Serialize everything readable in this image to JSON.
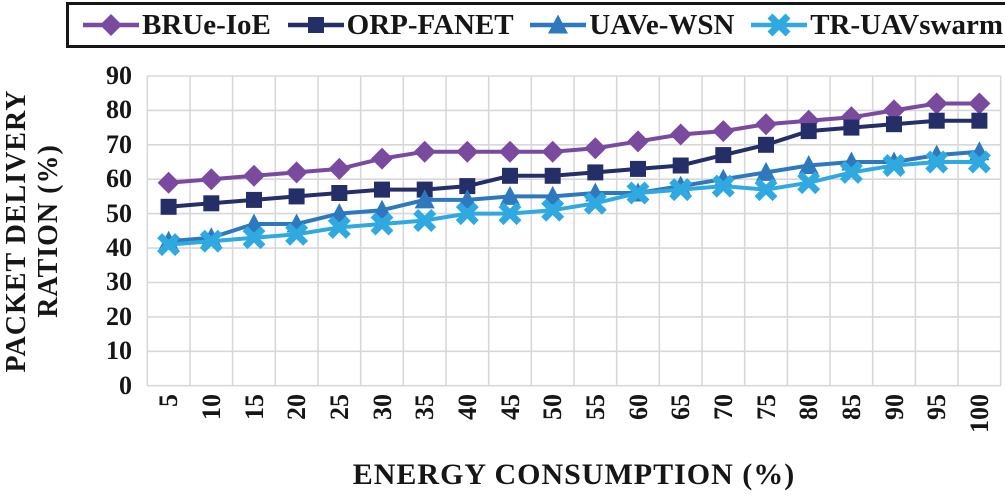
{
  "chart_data": {
    "type": "line",
    "title": "",
    "xlabel": "ENERGY CONSUMPTION (%)",
    "ylabel": "PACKET DELIVERY RATION (%)",
    "ylabel_line1": "PACKET DELIVERY",
    "ylabel_line2": "RATION (%)",
    "x": [
      5,
      10,
      15,
      20,
      25,
      30,
      35,
      40,
      45,
      50,
      55,
      60,
      65,
      70,
      75,
      80,
      85,
      90,
      95,
      100
    ],
    "xtick_labels": [
      "5",
      "10",
      "15",
      "20",
      "25",
      "30",
      "35",
      "40",
      "45",
      "50",
      "55",
      "60",
      "65",
      "70",
      "75",
      "80",
      "85",
      "90",
      "95",
      "100"
    ],
    "ytick_labels": [
      "0",
      "10",
      "20",
      "30",
      "40",
      "50",
      "60",
      "70",
      "80",
      "90"
    ],
    "ylim": [
      0,
      90
    ],
    "grid": true,
    "legend_position": "top",
    "series": [
      {
        "name": "BRUe-IoE",
        "marker": "diamond",
        "color": "#7A4A9F",
        "values": [
          59,
          60,
          61,
          62,
          63,
          66,
          68,
          68,
          68,
          68,
          69,
          71,
          73,
          74,
          76,
          77,
          78,
          80,
          82,
          82
        ]
      },
      {
        "name": "ORP-FANET",
        "marker": "square",
        "color": "#252F67",
        "values": [
          52,
          53,
          54,
          55,
          56,
          57,
          57,
          58,
          61,
          61,
          62,
          63,
          64,
          67,
          70,
          74,
          75,
          76,
          77,
          77
        ]
      },
      {
        "name": "UAVe-WSN",
        "marker": "triangle",
        "color": "#2E79BD",
        "values": [
          42,
          43,
          47,
          47,
          50,
          51,
          54,
          54,
          55,
          55,
          56,
          56,
          58,
          60,
          62,
          64,
          65,
          65,
          67,
          68
        ]
      },
      {
        "name": "TR-UAVswarm",
        "marker": "x",
        "color": "#2FA9E0",
        "values": [
          41,
          42,
          43,
          44,
          46,
          47,
          48,
          50,
          50,
          51,
          53,
          56,
          57,
          58,
          57,
          59,
          62,
          64,
          65,
          65
        ]
      }
    ],
    "colors": {
      "background": "#FFFFFF",
      "grid": "#D8D8D8",
      "text": "#161616",
      "legend_border": "#161616"
    }
  }
}
